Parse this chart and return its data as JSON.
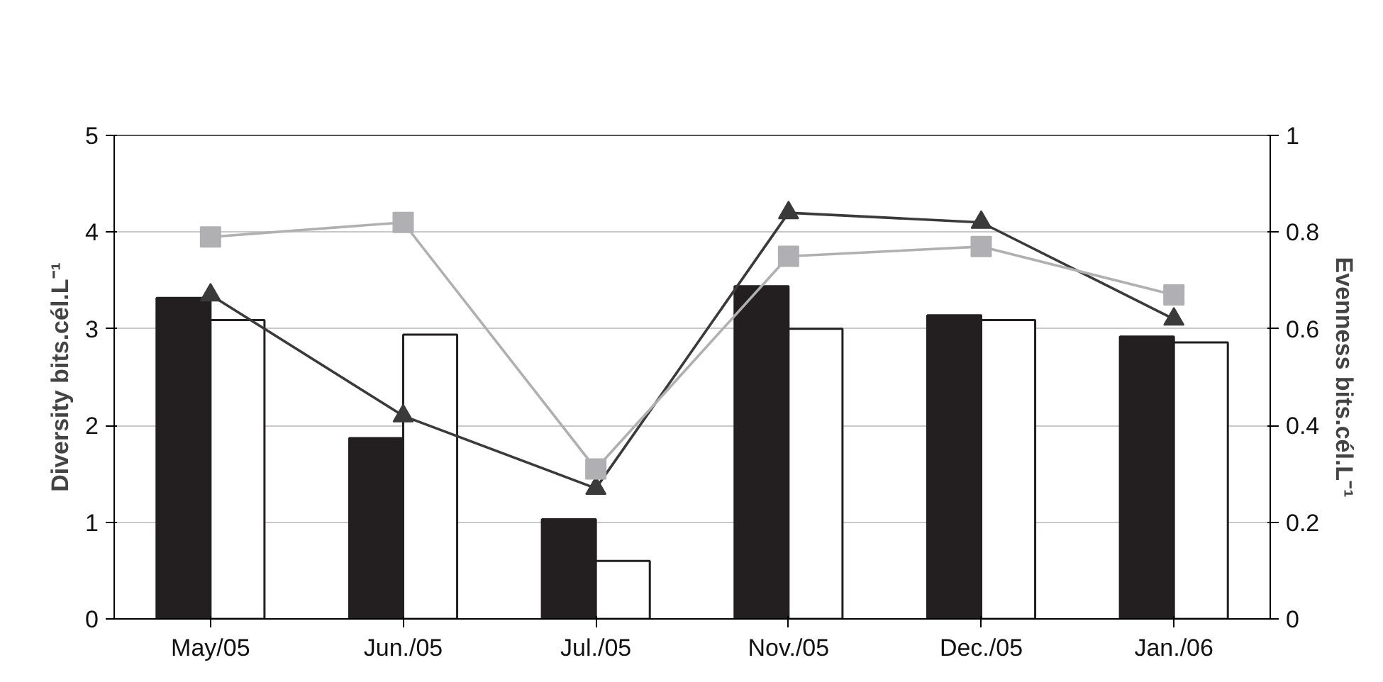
{
  "chart_data": {
    "type": "bar",
    "categories": [
      "May/05",
      "Jun./05",
      "Jul./05",
      "Nov./05",
      "Dec./05",
      "Jan./06"
    ],
    "ylabel": "Diversity bits.cél.L⁻¹",
    "y2label": "Evenness bits.cél.L⁻¹",
    "ylim": [
      0,
      5
    ],
    "yticks": [
      0,
      1,
      2,
      3,
      4,
      5
    ],
    "y2lim": [
      0,
      1
    ],
    "y2ticks": [
      0,
      0.2,
      0.4,
      0.6,
      0.8,
      1
    ],
    "grid": "y",
    "series": [
      {
        "color": "#231f20",
        "values": [
          3.32,
          1.87,
          1.03,
          3.44,
          3.14,
          2.92
        ]
      },
      {
        "color": "#ffffff",
        "values": [
          3.09,
          2.94,
          0.6,
          3.0,
          3.09,
          2.86
        ]
      },
      {
        "type": "line",
        "axis": "y2",
        "marker": "triangle",
        "color": "#3a3a3a",
        "values": [
          0.67,
          0.42,
          0.27,
          0.84,
          0.82,
          0.62
        ]
      },
      {
        "type": "line",
        "axis": "y2",
        "marker": "square",
        "color": "#b0b0b2",
        "values": [
          0.79,
          0.82,
          0.31,
          0.75,
          0.77,
          0.67
        ]
      }
    ]
  }
}
